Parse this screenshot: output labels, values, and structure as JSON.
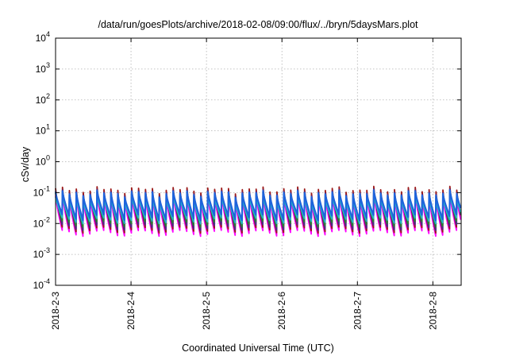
{
  "chart_data": {
    "type": "line",
    "title": "/data/run/goesPlots/archive/2018-02-08/09:00/flux/../bryn/5daysMars.plot",
    "xlabel": "Coordinated Universal Time (UTC)",
    "ylabel": "cSv/day",
    "yscale": "log",
    "ylim": [
      0.0001,
      10000
    ],
    "xlim": [
      "2018-02-03T00:00",
      "2018-02-08T09:00"
    ],
    "grid": true,
    "y_ticks": [
      {
        "value": 0.0001,
        "base": "10",
        "exp": "-4"
      },
      {
        "value": 0.001,
        "base": "10",
        "exp": "-3"
      },
      {
        "value": 0.01,
        "base": "10",
        "exp": "-2"
      },
      {
        "value": 0.1,
        "base": "10",
        "exp": "-1"
      },
      {
        "value": 1,
        "base": "10",
        "exp": "0"
      },
      {
        "value": 10,
        "base": "10",
        "exp": "1"
      },
      {
        "value": 100,
        "base": "10",
        "exp": "2"
      },
      {
        "value": 1000,
        "base": "10",
        "exp": "3"
      },
      {
        "value": 10000,
        "base": "10",
        "exp": "4"
      }
    ],
    "x_ticks": [
      {
        "value": "2018-02-03T00:00",
        "label": "2018-2-3"
      },
      {
        "value": "2018-02-04T00:00",
        "label": "2018-2-4"
      },
      {
        "value": "2018-02-05T00:00",
        "label": "2018-2-5"
      },
      {
        "value": "2018-02-06T00:00",
        "label": "2018-2-6"
      },
      {
        "value": "2018-02-07T00:00",
        "label": "2018-2-7"
      },
      {
        "value": "2018-02-08T00:00",
        "label": "2018-2-8"
      }
    ],
    "cycle_hours": 2.2,
    "series": [
      {
        "color": "#ff00ff",
        "low": 0.0055,
        "high": 0.095
      },
      {
        "color": "#9b1a1a",
        "low": 0.007,
        "high": 0.16
      },
      {
        "color": "#4b2a8a",
        "low": 0.0085,
        "high": 0.13
      },
      {
        "color": "#2e7d32",
        "low": 0.011,
        "high": 0.11
      },
      {
        "color": "#22b8c8",
        "low": 0.014,
        "high": 0.085
      },
      {
        "color": "#1e64dc",
        "low": 0.018,
        "high": 0.12
      }
    ]
  }
}
